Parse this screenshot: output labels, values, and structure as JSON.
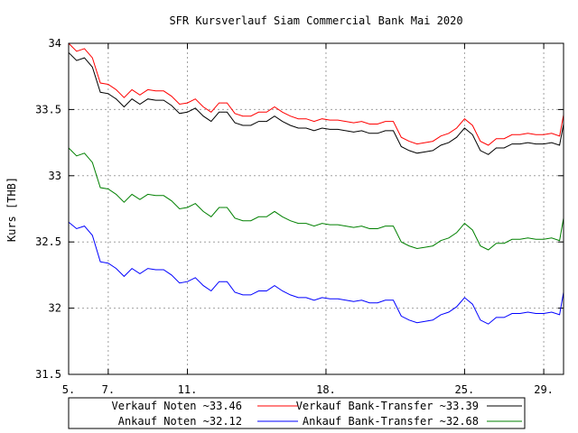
{
  "chart_data": {
    "type": "line",
    "title": "SFR Kursverlauf Siam Commercial Bank Mai 2020",
    "ylabel": "Kurs [THB]",
    "xlabel": "",
    "ylim": [
      31.5,
      34
    ],
    "xlim": [
      5,
      30
    ],
    "y_ticks": [
      "31.5",
      "32",
      "32.5",
      "33",
      "33.5",
      "34"
    ],
    "x_ticks": [
      {
        "x": 5,
        "label": "5."
      },
      {
        "x": 7,
        "label": "7."
      },
      {
        "x": 11,
        "label": "11."
      },
      {
        "x": 18,
        "label": "18."
      },
      {
        "x": 25,
        "label": "25."
      },
      {
        "x": 29,
        "label": "29."
      }
    ],
    "grid": true,
    "legend_position": "bottom",
    "x": [
      5.0,
      5.4,
      5.8,
      6.2,
      6.6,
      7.0,
      7.4,
      7.8,
      8.2,
      8.6,
      9.0,
      9.4,
      9.8,
      10.2,
      10.6,
      11.0,
      11.4,
      11.8,
      12.2,
      12.6,
      13.0,
      13.4,
      13.8,
      14.2,
      14.6,
      15.0,
      15.4,
      15.8,
      16.2,
      16.6,
      17.0,
      17.4,
      17.8,
      18.2,
      18.6,
      19.0,
      19.4,
      19.8,
      20.2,
      20.6,
      21.0,
      21.4,
      21.8,
      22.2,
      22.6,
      23.0,
      23.4,
      23.8,
      24.2,
      24.6,
      25.0,
      25.4,
      25.8,
      26.2,
      26.6,
      27.0,
      27.4,
      27.8,
      28.2,
      28.6,
      29.0,
      29.4,
      29.8,
      30.0
    ],
    "series": [
      {
        "name": "Verkauf Noten ~33.46",
        "color": "#ff0000",
        "values": [
          34.0,
          33.94,
          33.96,
          33.89,
          33.7,
          33.69,
          33.65,
          33.59,
          33.65,
          33.61,
          33.65,
          33.64,
          33.64,
          33.6,
          33.54,
          33.55,
          33.58,
          33.52,
          33.48,
          33.55,
          33.55,
          33.47,
          33.45,
          33.45,
          33.48,
          33.48,
          33.52,
          33.48,
          33.45,
          33.43,
          33.43,
          33.41,
          33.43,
          33.42,
          33.42,
          33.41,
          33.4,
          33.41,
          33.39,
          33.39,
          33.41,
          33.41,
          33.29,
          33.26,
          33.24,
          33.25,
          33.26,
          33.3,
          33.32,
          33.36,
          33.43,
          33.38,
          33.26,
          33.23,
          33.28,
          33.28,
          33.31,
          33.31,
          33.32,
          33.31,
          33.31,
          33.32,
          33.3,
          33.46
        ]
      },
      {
        "name": "Verkauf Bank-Transfer ~33.39",
        "color": "#000000",
        "values": [
          33.93,
          33.87,
          33.89,
          33.82,
          33.63,
          33.62,
          33.58,
          33.52,
          33.58,
          33.54,
          33.58,
          33.57,
          33.57,
          33.53,
          33.47,
          33.48,
          33.51,
          33.45,
          33.41,
          33.48,
          33.48,
          33.4,
          33.38,
          33.38,
          33.41,
          33.41,
          33.45,
          33.41,
          33.38,
          33.36,
          33.36,
          33.34,
          33.36,
          33.35,
          33.35,
          33.34,
          33.33,
          33.34,
          33.32,
          33.32,
          33.34,
          33.34,
          33.22,
          33.19,
          33.17,
          33.18,
          33.19,
          33.23,
          33.25,
          33.29,
          33.36,
          33.31,
          33.19,
          33.16,
          33.21,
          33.21,
          33.24,
          33.24,
          33.25,
          33.24,
          33.24,
          33.25,
          33.23,
          33.39
        ]
      },
      {
        "name": "Ankauf Noten ~32.12",
        "color": "#0000ff",
        "values": [
          32.65,
          32.6,
          32.62,
          32.55,
          32.35,
          32.34,
          32.3,
          32.24,
          32.3,
          32.26,
          32.3,
          32.29,
          32.29,
          32.25,
          32.19,
          32.2,
          32.23,
          32.17,
          32.13,
          32.2,
          32.2,
          32.12,
          32.1,
          32.1,
          32.13,
          32.13,
          32.17,
          32.13,
          32.1,
          32.08,
          32.08,
          32.06,
          32.08,
          32.07,
          32.07,
          32.06,
          32.05,
          32.06,
          32.04,
          32.04,
          32.06,
          32.06,
          31.94,
          31.91,
          31.89,
          31.9,
          31.91,
          31.95,
          31.97,
          32.01,
          32.08,
          32.03,
          31.91,
          31.88,
          31.93,
          31.93,
          31.96,
          31.96,
          31.97,
          31.96,
          31.96,
          31.97,
          31.95,
          32.12
        ]
      },
      {
        "name": "Ankauf Bank-Transfer ~32.68",
        "color": "#008000",
        "values": [
          33.21,
          33.15,
          33.17,
          33.1,
          32.91,
          32.9,
          32.86,
          32.8,
          32.86,
          32.82,
          32.86,
          32.85,
          32.85,
          32.81,
          32.75,
          32.76,
          32.79,
          32.73,
          32.69,
          32.76,
          32.76,
          32.68,
          32.66,
          32.66,
          32.69,
          32.69,
          32.73,
          32.69,
          32.66,
          32.64,
          32.64,
          32.62,
          32.64,
          32.63,
          32.63,
          32.62,
          32.61,
          32.62,
          32.6,
          32.6,
          32.62,
          32.62,
          32.5,
          32.47,
          32.45,
          32.46,
          32.47,
          32.51,
          32.53,
          32.57,
          32.64,
          32.59,
          32.47,
          32.44,
          32.49,
          32.49,
          32.52,
          32.52,
          32.53,
          32.52,
          32.52,
          32.53,
          32.51,
          32.68
        ]
      }
    ]
  }
}
